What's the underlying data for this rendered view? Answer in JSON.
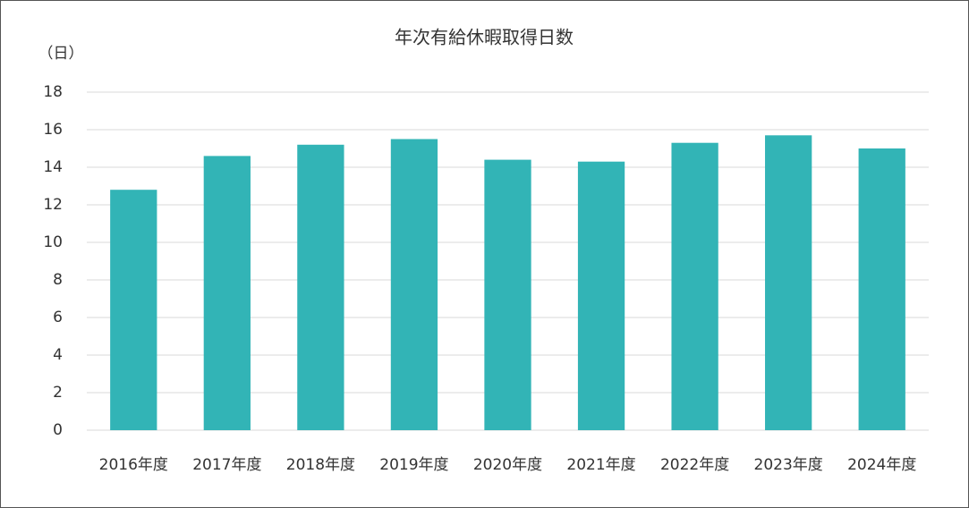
{
  "chart_data": {
    "type": "bar",
    "title": "年次有給休暇取得日数",
    "ylabel": "（日）",
    "categories": [
      "2016年度",
      "2017年度",
      "2018年度",
      "2019年度",
      "2020年度",
      "2021年度",
      "2022年度",
      "2023年度",
      "2024年度"
    ],
    "values": [
      12.8,
      14.6,
      15.2,
      15.5,
      14.4,
      14.3,
      15.3,
      15.7,
      15.0
    ],
    "color": "#32b4b6",
    "ylim": [
      0,
      18
    ],
    "yticks": [
      0,
      2,
      4,
      6,
      8,
      10,
      12,
      14,
      16,
      18
    ],
    "grid": true
  }
}
